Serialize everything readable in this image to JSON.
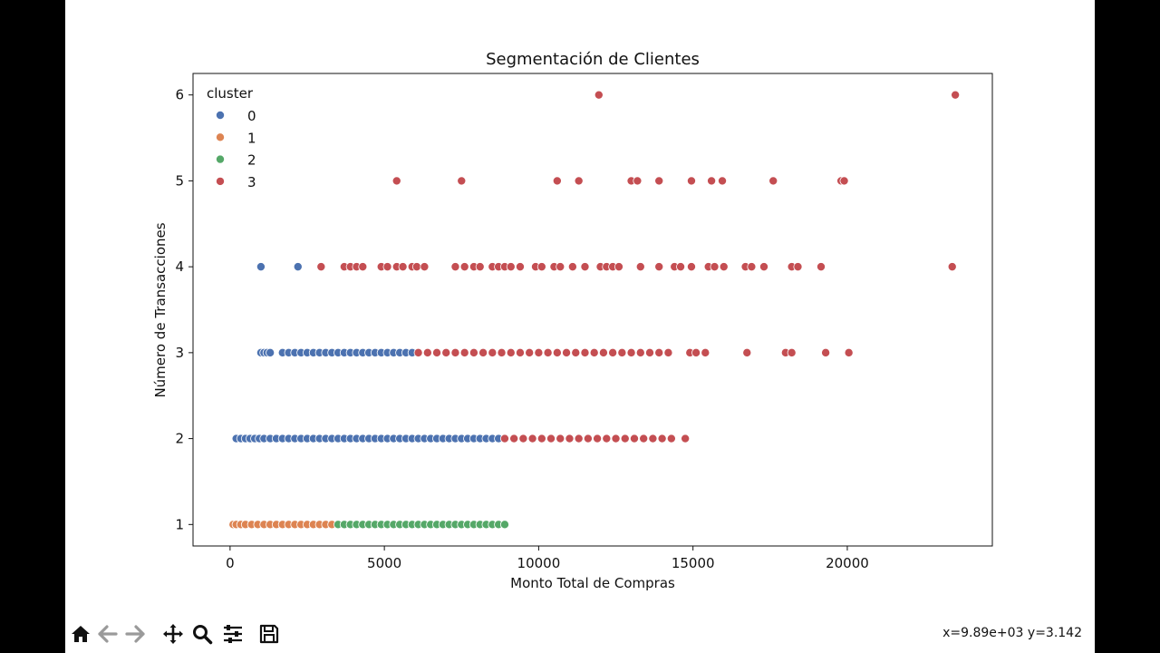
{
  "toolbar": {
    "buttons": [
      {
        "name": "home-icon"
      },
      {
        "name": "back-icon"
      },
      {
        "name": "forward-icon"
      },
      {
        "name": "pan-icon"
      },
      {
        "name": "zoom-icon"
      },
      {
        "name": "configure-subplots-icon"
      },
      {
        "name": "save-icon"
      }
    ],
    "coords": "x=9.89e+03 y=3.142"
  },
  "colors": {
    "0": "#4c72b0",
    "1": "#dd8452",
    "2": "#55a868",
    "3": "#c44e52"
  },
  "chart_data": {
    "type": "scatter",
    "title": "Segmentación de Clientes",
    "xlabel": "Monto Total de Compras",
    "ylabel": "Número de Transacciones",
    "xlim": [
      -1200,
      24700
    ],
    "ylim": [
      0.75,
      6.25
    ],
    "xticks": [
      0,
      5000,
      10000,
      15000,
      20000
    ],
    "yticks": [
      1,
      2,
      3,
      4,
      5,
      6
    ],
    "legend": {
      "title": "cluster",
      "placement": "top-left",
      "entries": [
        "0",
        "1",
        "2",
        "3"
      ]
    },
    "series": [
      {
        "name": "0",
        "points": [
          [
            1000,
            4
          ],
          [
            2200,
            4
          ],
          [
            1000,
            3
          ],
          [
            1100,
            3
          ],
          [
            1200,
            3
          ],
          [
            1300,
            3
          ],
          [
            1700,
            3
          ],
          [
            1900,
            3
          ],
          [
            2100,
            3
          ],
          [
            2300,
            3
          ],
          [
            2500,
            3
          ],
          [
            2700,
            3
          ],
          [
            2900,
            3
          ],
          [
            3100,
            3
          ],
          [
            3300,
            3
          ],
          [
            3500,
            3
          ],
          [
            3700,
            3
          ],
          [
            3900,
            3
          ],
          [
            4100,
            3
          ],
          [
            4300,
            3
          ],
          [
            4500,
            3
          ],
          [
            4700,
            3
          ],
          [
            4900,
            3
          ],
          [
            5100,
            3
          ],
          [
            5300,
            3
          ],
          [
            5500,
            3
          ],
          [
            5700,
            3
          ],
          [
            5900,
            3
          ],
          [
            200,
            2
          ],
          [
            350,
            2
          ],
          [
            500,
            2
          ],
          [
            650,
            2
          ],
          [
            800,
            2
          ],
          [
            950,
            2
          ],
          [
            1100,
            2
          ],
          [
            1300,
            2
          ],
          [
            1500,
            2
          ],
          [
            1700,
            2
          ],
          [
            1900,
            2
          ],
          [
            2100,
            2
          ],
          [
            2300,
            2
          ],
          [
            2500,
            2
          ],
          [
            2700,
            2
          ],
          [
            2900,
            2
          ],
          [
            3100,
            2
          ],
          [
            3300,
            2
          ],
          [
            3500,
            2
          ],
          [
            3700,
            2
          ],
          [
            3900,
            2
          ],
          [
            4100,
            2
          ],
          [
            4300,
            2
          ],
          [
            4500,
            2
          ],
          [
            4700,
            2
          ],
          [
            4900,
            2
          ],
          [
            5100,
            2
          ],
          [
            5300,
            2
          ],
          [
            5500,
            2
          ],
          [
            5700,
            2
          ],
          [
            5900,
            2
          ],
          [
            6100,
            2
          ],
          [
            6300,
            2
          ],
          [
            6500,
            2
          ],
          [
            6700,
            2
          ],
          [
            6900,
            2
          ],
          [
            7100,
            2
          ],
          [
            7300,
            2
          ],
          [
            7500,
            2
          ],
          [
            7700,
            2
          ],
          [
            7900,
            2
          ],
          [
            8100,
            2
          ],
          [
            8300,
            2
          ],
          [
            8500,
            2
          ],
          [
            8700,
            2
          ]
        ]
      },
      {
        "name": "1",
        "points": [
          [
            100,
            1
          ],
          [
            200,
            1
          ],
          [
            350,
            1
          ],
          [
            500,
            1
          ],
          [
            700,
            1
          ],
          [
            900,
            1
          ],
          [
            1100,
            1
          ],
          [
            1300,
            1
          ],
          [
            1500,
            1
          ],
          [
            1700,
            1
          ],
          [
            1900,
            1
          ],
          [
            2100,
            1
          ],
          [
            2300,
            1
          ],
          [
            2500,
            1
          ],
          [
            2700,
            1
          ],
          [
            2900,
            1
          ],
          [
            3100,
            1
          ],
          [
            3300,
            1
          ]
        ]
      },
      {
        "name": "2",
        "points": [
          [
            3500,
            1
          ],
          [
            3700,
            1
          ],
          [
            3900,
            1
          ],
          [
            4100,
            1
          ],
          [
            4300,
            1
          ],
          [
            4500,
            1
          ],
          [
            4700,
            1
          ],
          [
            4900,
            1
          ],
          [
            5100,
            1
          ],
          [
            5300,
            1
          ],
          [
            5500,
            1
          ],
          [
            5700,
            1
          ],
          [
            5900,
            1
          ],
          [
            6100,
            1
          ],
          [
            6300,
            1
          ],
          [
            6500,
            1
          ],
          [
            6700,
            1
          ],
          [
            6900,
            1
          ],
          [
            7100,
            1
          ],
          [
            7300,
            1
          ],
          [
            7500,
            1
          ],
          [
            7700,
            1
          ],
          [
            7900,
            1
          ],
          [
            8100,
            1
          ],
          [
            8300,
            1
          ],
          [
            8500,
            1
          ],
          [
            8700,
            1
          ],
          [
            8900,
            1
          ]
        ]
      },
      {
        "name": "3",
        "points": [
          [
            11950,
            6
          ],
          [
            23500,
            6
          ],
          [
            5400,
            5
          ],
          [
            7500,
            5
          ],
          [
            10600,
            5
          ],
          [
            11300,
            5
          ],
          [
            13000,
            5
          ],
          [
            13200,
            5
          ],
          [
            13900,
            5
          ],
          [
            14950,
            5
          ],
          [
            15600,
            5
          ],
          [
            15950,
            5
          ],
          [
            17600,
            5
          ],
          [
            19800,
            5
          ],
          [
            19900,
            5
          ],
          [
            2950,
            4
          ],
          [
            3700,
            4
          ],
          [
            3900,
            4
          ],
          [
            4100,
            4
          ],
          [
            4300,
            4
          ],
          [
            4900,
            4
          ],
          [
            5100,
            4
          ],
          [
            5400,
            4
          ],
          [
            5600,
            4
          ],
          [
            5900,
            4
          ],
          [
            6050,
            4
          ],
          [
            6300,
            4
          ],
          [
            7300,
            4
          ],
          [
            7600,
            4
          ],
          [
            7900,
            4
          ],
          [
            8100,
            4
          ],
          [
            8500,
            4
          ],
          [
            8700,
            4
          ],
          [
            8900,
            4
          ],
          [
            9100,
            4
          ],
          [
            9400,
            4
          ],
          [
            9900,
            4
          ],
          [
            10100,
            4
          ],
          [
            10500,
            4
          ],
          [
            10700,
            4
          ],
          [
            11100,
            4
          ],
          [
            11500,
            4
          ],
          [
            12000,
            4
          ],
          [
            12200,
            4
          ],
          [
            12400,
            4
          ],
          [
            12600,
            4
          ],
          [
            13300,
            4
          ],
          [
            13900,
            4
          ],
          [
            14400,
            4
          ],
          [
            14600,
            4
          ],
          [
            14950,
            4
          ],
          [
            15500,
            4
          ],
          [
            15700,
            4
          ],
          [
            16000,
            4
          ],
          [
            16700,
            4
          ],
          [
            16900,
            4
          ],
          [
            17300,
            4
          ],
          [
            18200,
            4
          ],
          [
            18400,
            4
          ],
          [
            19150,
            4
          ],
          [
            23400,
            4
          ],
          [
            6100,
            3
          ],
          [
            6400,
            3
          ],
          [
            6700,
            3
          ],
          [
            7000,
            3
          ],
          [
            7300,
            3
          ],
          [
            7600,
            3
          ],
          [
            7900,
            3
          ],
          [
            8200,
            3
          ],
          [
            8500,
            3
          ],
          [
            8800,
            3
          ],
          [
            9100,
            3
          ],
          [
            9400,
            3
          ],
          [
            9700,
            3
          ],
          [
            10000,
            3
          ],
          [
            10300,
            3
          ],
          [
            10600,
            3
          ],
          [
            10900,
            3
          ],
          [
            11200,
            3
          ],
          [
            11500,
            3
          ],
          [
            11800,
            3
          ],
          [
            12100,
            3
          ],
          [
            12400,
            3
          ],
          [
            12700,
            3
          ],
          [
            13000,
            3
          ],
          [
            13300,
            3
          ],
          [
            13600,
            3
          ],
          [
            13900,
            3
          ],
          [
            14200,
            3
          ],
          [
            14900,
            3
          ],
          [
            15100,
            3
          ],
          [
            15400,
            3
          ],
          [
            16750,
            3
          ],
          [
            18000,
            3
          ],
          [
            18200,
            3
          ],
          [
            19300,
            3
          ],
          [
            20050,
            3
          ],
          [
            8900,
            2
          ],
          [
            9200,
            2
          ],
          [
            9500,
            2
          ],
          [
            9800,
            2
          ],
          [
            10100,
            2
          ],
          [
            10400,
            2
          ],
          [
            10700,
            2
          ],
          [
            11000,
            2
          ],
          [
            11300,
            2
          ],
          [
            11600,
            2
          ],
          [
            11900,
            2
          ],
          [
            12200,
            2
          ],
          [
            12500,
            2
          ],
          [
            12800,
            2
          ],
          [
            13100,
            2
          ],
          [
            13400,
            2
          ],
          [
            13700,
            2
          ],
          [
            14000,
            2
          ],
          [
            14300,
            2
          ],
          [
            14750,
            2
          ]
        ]
      }
    ]
  }
}
